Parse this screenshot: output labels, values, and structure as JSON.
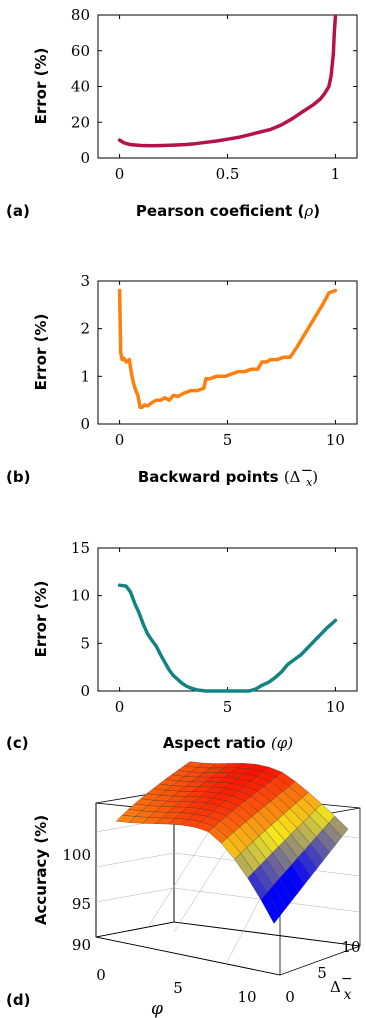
{
  "chart_data": [
    {
      "type": "line",
      "panel_label": "(a)",
      "xlabel": "Pearson coeficient",
      "xsymbol": "ρ",
      "ylabel": "Error (%)",
      "xlim": [
        -0.1,
        1.1
      ],
      "ylim": [
        0,
        80
      ],
      "xticks": [
        "0",
        "0.5",
        "1"
      ],
      "xtick_values": [
        0,
        0.5,
        1
      ],
      "yticks": [
        "0",
        "20",
        "40",
        "60",
        "80"
      ],
      "ytick_values": [
        0,
        20,
        40,
        60,
        80
      ],
      "color": "#b5124b",
      "series": [
        {
          "x": [
            0,
            0.02,
            0.05,
            0.1,
            0.15,
            0.2,
            0.25,
            0.3,
            0.35,
            0.4,
            0.45,
            0.5,
            0.55,
            0.6,
            0.65,
            0.7,
            0.75,
            0.8,
            0.85,
            0.9,
            0.93,
            0.95,
            0.97,
            0.98,
            0.99,
            0.995,
            1.0
          ],
          "y": [
            10,
            8.5,
            7.5,
            7,
            6.8,
            7,
            7.2,
            7.5,
            8,
            8.8,
            9.5,
            10.5,
            11.5,
            13,
            14.5,
            16,
            18.5,
            22,
            26,
            30,
            33,
            36,
            40,
            46,
            58,
            70,
            79
          ]
        }
      ]
    },
    {
      "type": "line",
      "panel_label": "(b)",
      "xlabel": "Backward points",
      "xsymbol": "(Δ",
      "xsymbol_sup": "−",
      "xsymbol_sub": "x",
      "xsymbol_close": ")",
      "ylabel": "Error (%)",
      "xlim": [
        -1,
        11
      ],
      "ylim": [
        0,
        3
      ],
      "xticks": [
        "0",
        "5",
        "10"
      ],
      "xtick_values": [
        0,
        5,
        10
      ],
      "yticks": [
        "0",
        "1",
        "2",
        "3"
      ],
      "ytick_values": [
        0,
        1,
        2,
        3
      ],
      "color": "#ff7f0e",
      "series": [
        {
          "x": [
            0,
            0.05,
            0.12,
            0.2,
            0.3,
            0.45,
            0.55,
            0.65,
            0.75,
            0.85,
            0.95,
            1.05,
            1.15,
            1.3,
            1.5,
            1.7,
            1.9,
            2.1,
            2.3,
            2.5,
            2.7,
            3.0,
            3.3,
            3.6,
            3.9,
            4.0,
            4.2,
            4.5,
            4.9,
            5.2,
            5.5,
            5.8,
            6.1,
            6.4,
            6.6,
            6.8,
            7.0,
            7.3,
            7.6,
            7.9,
            8.2,
            8.6,
            9.0,
            9.4,
            9.7,
            10.0
          ],
          "y": [
            2.8,
            1.5,
            1.35,
            1.38,
            1.3,
            1.35,
            1.05,
            0.85,
            0.7,
            0.6,
            0.35,
            0.35,
            0.4,
            0.38,
            0.45,
            0.5,
            0.5,
            0.55,
            0.5,
            0.6,
            0.58,
            0.65,
            0.7,
            0.7,
            0.75,
            0.95,
            0.95,
            1.0,
            1.0,
            1.05,
            1.1,
            1.1,
            1.15,
            1.15,
            1.3,
            1.3,
            1.35,
            1.35,
            1.4,
            1.4,
            1.6,
            1.9,
            2.2,
            2.5,
            2.75,
            2.8
          ]
        }
      ]
    },
    {
      "type": "line",
      "panel_label": "(c)",
      "xlabel": "Aspect ratio",
      "xsymbol": "(φ)",
      "ylabel": "Error (%)",
      "xlim": [
        -1,
        11
      ],
      "ylim": [
        0,
        15
      ],
      "xticks": [
        "0",
        "5",
        "10"
      ],
      "xtick_values": [
        0,
        5,
        10
      ],
      "yticks": [
        "0",
        "5",
        "10",
        "15"
      ],
      "ytick_values": [
        0,
        5,
        10,
        15
      ],
      "color": "#138384",
      "series": [
        {
          "x": [
            0,
            0.3,
            0.5,
            0.7,
            0.9,
            1.1,
            1.3,
            1.5,
            1.7,
            1.9,
            2.1,
            2.3,
            2.5,
            2.7,
            2.9,
            3.1,
            3.3,
            3.6,
            4.0,
            5.0,
            6.0,
            6.3,
            6.6,
            6.9,
            7.2,
            7.5,
            7.8,
            8.1,
            8.4,
            8.7,
            9.0,
            9.3,
            9.6,
            9.8,
            10.0
          ],
          "y": [
            11.1,
            11,
            10.4,
            9.2,
            8.2,
            7,
            6,
            5.3,
            4.7,
            3.8,
            3,
            2.2,
            1.6,
            1.2,
            0.8,
            0.5,
            0.3,
            0.1,
            0,
            0,
            0,
            0.2,
            0.6,
            0.9,
            1.4,
            2.0,
            2.8,
            3.3,
            3.8,
            4.5,
            5.2,
            5.9,
            6.6,
            7.0,
            7.4
          ]
        }
      ]
    },
    {
      "type": "surface",
      "panel_label": "(d)",
      "zlabel": "Accuracy (%)",
      "xlabel": "φ",
      "ylabel": "Δ",
      "ylabel_sup": "−",
      "ylabel_sub": "x",
      "zticks": [
        "90",
        "95",
        "100"
      ],
      "ztick_values": [
        90,
        95,
        100
      ],
      "xticks": [
        "0",
        "5",
        "10"
      ],
      "yticks": [
        "0",
        "5",
        "10"
      ],
      "zlim": [
        89,
        102
      ],
      "colormap": [
        "#0000ff",
        "#f5e81c",
        "#ff0000"
      ]
    }
  ]
}
